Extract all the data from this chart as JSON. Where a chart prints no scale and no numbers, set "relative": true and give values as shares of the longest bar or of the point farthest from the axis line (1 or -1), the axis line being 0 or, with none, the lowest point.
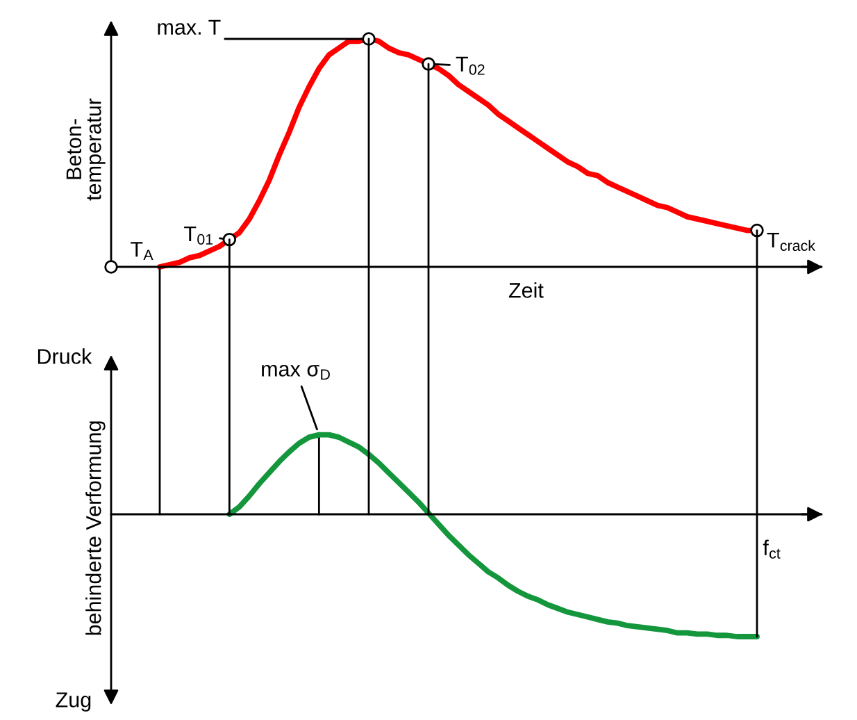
{
  "chart_data": [
    {
      "type": "line",
      "relative": true,
      "ylabel": "Beton-\ntemperatur",
      "xlabel": "Zeit",
      "annotations": [
        "T$_{A}$",
        "T$_{01}$",
        "max. T",
        "T$_{02}$",
        "T$_{crack}$"
      ],
      "categories": [
        null,
        null,
        null,
        null,
        null,
        null,
        null,
        null,
        null,
        null,
        null,
        null,
        null,
        null,
        null,
        null,
        null,
        null,
        null,
        null,
        null,
        null,
        null,
        null,
        null,
        null,
        null,
        null,
        null,
        null,
        null,
        null,
        null,
        null,
        null,
        null,
        null,
        null,
        null,
        null,
        null,
        null,
        null,
        null,
        null,
        null,
        null,
        null,
        null,
        null,
        null,
        null,
        null,
        null,
        null,
        null,
        null,
        null,
        null,
        null,
        null
      ],
      "series": [
        {
          "color": "#ff0000",
          "values": [
            0,
            0.01,
            0.02,
            0.04,
            0.05,
            0.07,
            0.09,
            0.12,
            0.15,
            0.21,
            0.29,
            0.38,
            0.49,
            0.59,
            0.7,
            0.79,
            0.87,
            0.93,
            0.96,
            0.99,
            0.99,
            1.0,
            0.99,
            0.96,
            0.94,
            0.93,
            0.91,
            0.89,
            0.87,
            0.84,
            0.8,
            0.77,
            0.74,
            0.71,
            0.67,
            0.64,
            0.61,
            0.58,
            0.55,
            0.52,
            0.49,
            0.46,
            0.44,
            0.41,
            0.4,
            0.37,
            0.35,
            0.33,
            0.31,
            0.29,
            0.27,
            0.26,
            0.24,
            0.22,
            0.21,
            0.2,
            0.19,
            0.18,
            0.17,
            0.16,
            0.16
          ]
        }
      ]
    },
    {
      "type": "line",
      "relative": true,
      "ylabel": "behinderte Verformung",
      "annotations": [
        "Druck",
        "Zug",
        "max σ$_{D}$",
        "f$_{ct}$"
      ],
      "categories": [
        null,
        null,
        null,
        null,
        null,
        null,
        null,
        null,
        null,
        null,
        null,
        null,
        null,
        null,
        null,
        null,
        null,
        null,
        null,
        null,
        null,
        null,
        null,
        null,
        null,
        null,
        null,
        null,
        null,
        null,
        null,
        null,
        null,
        null,
        null,
        null,
        null,
        null,
        null,
        null,
        null,
        null,
        null,
        null,
        null,
        null,
        null,
        null,
        null,
        null,
        null,
        null,
        null,
        null
      ],
      "series": [
        {
          "color": "#14963c",
          "values": [
            0,
            0.06,
            0.15,
            0.25,
            0.34,
            0.43,
            0.51,
            0.58,
            0.63,
            0.65,
            0.65,
            0.63,
            0.59,
            0.55,
            0.49,
            0.42,
            0.34,
            0.26,
            0.18,
            0.1,
            0.01,
            -0.08,
            -0.17,
            -0.25,
            -0.33,
            -0.4,
            -0.47,
            -0.52,
            -0.58,
            -0.63,
            -0.67,
            -0.7,
            -0.74,
            -0.77,
            -0.8,
            -0.82,
            -0.84,
            -0.86,
            -0.88,
            -0.89,
            -0.91,
            -0.92,
            -0.93,
            -0.94,
            -0.95,
            -0.97,
            -0.97,
            -0.98,
            -0.98,
            -0.99,
            -0.99,
            -1.0,
            -1.0,
            -1.0
          ]
        }
      ]
    }
  ]
}
